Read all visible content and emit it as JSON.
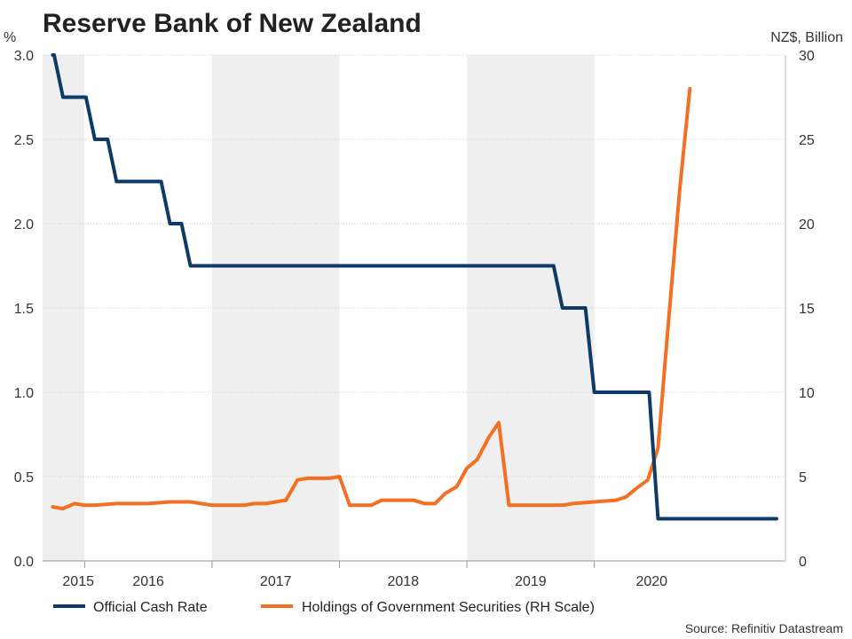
{
  "chart_data": {
    "type": "line",
    "title": "Reserve Bank of New Zealand",
    "source": "Source: Refinitiv Datastream",
    "y_left": {
      "label": "%",
      "range": [
        0,
        3.0
      ],
      "ticks": [
        "0.0",
        "0.5",
        "1.0",
        "1.5",
        "2.0",
        "2.5",
        "3.0"
      ]
    },
    "y_right": {
      "label": "NZ$, Billion",
      "range": [
        0,
        30
      ],
      "ticks": [
        "0",
        "5",
        "10",
        "15",
        "20",
        "25",
        "30"
      ]
    },
    "x_range": [
      2014.92,
      2020.75
    ],
    "x_tick_labels": [
      {
        "label": "2015",
        "pos": 2015.2
      },
      {
        "label": "2016",
        "pos": 2015.75
      },
      {
        "label": "2017",
        "pos": 2016.75
      },
      {
        "label": "2018",
        "pos": 2017.75
      },
      {
        "label": "2019",
        "pos": 2018.75
      },
      {
        "label": "2020",
        "pos": 2019.7
      }
    ],
    "x_tick_marks": [
      2015.25,
      2016.25,
      2017.25,
      2018.25,
      2019.25
    ],
    "shaded_bands": [
      [
        2014.92,
        2015.25
      ],
      [
        2016.25,
        2017.25
      ],
      [
        2018.25,
        2019.25
      ]
    ],
    "grid": true,
    "legend_position": "bottom",
    "series": [
      {
        "name": "Official Cash Rate",
        "axis": "left",
        "color": "#0d3a66",
        "step": true,
        "points": [
          [
            2015.0,
            3.0
          ],
          [
            2015.08,
            2.75
          ],
          [
            2015.33,
            2.5
          ],
          [
            2015.5,
            2.25
          ],
          [
            2015.92,
            2.0
          ],
          [
            2016.08,
            1.75
          ],
          [
            2019.0,
            1.5
          ],
          [
            2019.25,
            1.0
          ],
          [
            2019.75,
            0.25
          ],
          [
            2020.68,
            0.25
          ]
        ]
      },
      {
        "name": "Holdings of Government Securities (RH Scale)",
        "axis": "right",
        "color": "#f36f21",
        "step": false,
        "points": [
          [
            2015.0,
            3.2
          ],
          [
            2015.08,
            3.1
          ],
          [
            2015.17,
            3.4
          ],
          [
            2015.25,
            3.3
          ],
          [
            2015.33,
            3.3
          ],
          [
            2015.5,
            3.4
          ],
          [
            2015.75,
            3.4
          ],
          [
            2015.92,
            3.5
          ],
          [
            2016.08,
            3.5
          ],
          [
            2016.25,
            3.3
          ],
          [
            2016.5,
            3.3
          ],
          [
            2016.58,
            3.4
          ],
          [
            2016.67,
            3.4
          ],
          [
            2016.83,
            3.6
          ],
          [
            2016.92,
            4.8
          ],
          [
            2017.0,
            4.9
          ],
          [
            2017.17,
            4.9
          ],
          [
            2017.25,
            5.0
          ],
          [
            2017.33,
            3.3
          ],
          [
            2017.5,
            3.3
          ],
          [
            2017.58,
            3.6
          ],
          [
            2017.83,
            3.6
          ],
          [
            2017.92,
            3.4
          ],
          [
            2018.0,
            3.4
          ],
          [
            2018.08,
            4.0
          ],
          [
            2018.17,
            4.4
          ],
          [
            2018.25,
            5.5
          ],
          [
            2018.33,
            6.0
          ],
          [
            2018.42,
            7.3
          ],
          [
            2018.5,
            8.2
          ],
          [
            2018.58,
            3.3
          ],
          [
            2018.83,
            3.3
          ],
          [
            2019.0,
            3.3
          ],
          [
            2019.08,
            3.4
          ],
          [
            2019.25,
            3.5
          ],
          [
            2019.42,
            3.6
          ],
          [
            2019.5,
            3.8
          ],
          [
            2019.58,
            4.3
          ],
          [
            2019.67,
            4.8
          ],
          [
            2019.75,
            6.7
          ],
          [
            2019.83,
            14.0
          ],
          [
            2019.92,
            22.0
          ],
          [
            2020.0,
            28.0
          ]
        ]
      }
    ]
  }
}
